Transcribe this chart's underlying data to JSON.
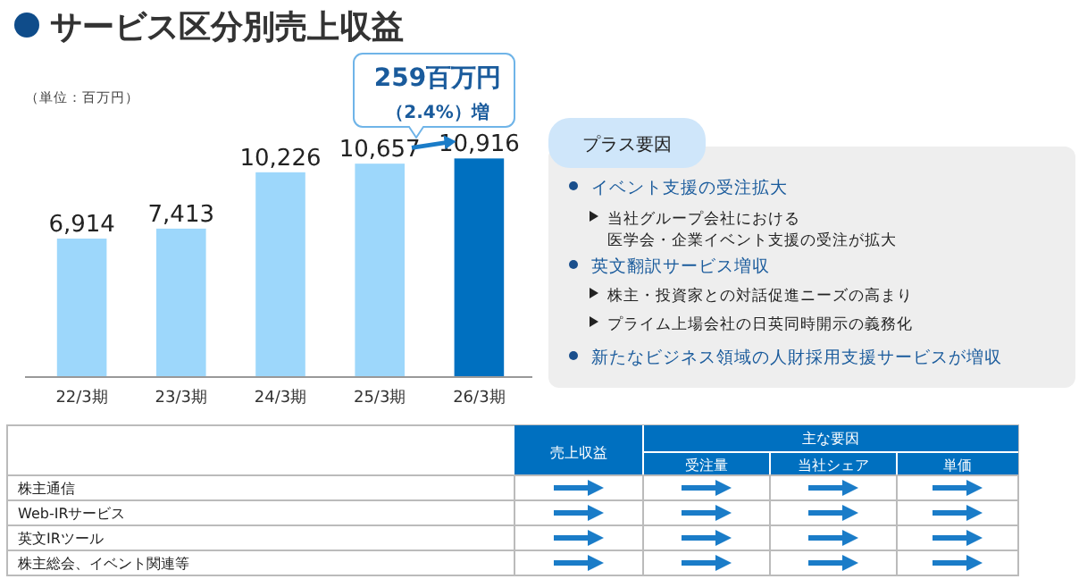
{
  "chart_data": {
    "type": "bar",
    "title": "サービス区分別売上収益",
    "categories": [
      "22/3期",
      "23/3期",
      "24/3期",
      "25/3期",
      "26/3期"
    ],
    "values": [
      6914,
      7413,
      10226,
      10657,
      10916
    ],
    "colors": [
      "#9dd7fb",
      "#9dd7fb",
      "#9dd7fb",
      "#9dd7fb",
      "#0070c0"
    ],
    "value_labels": [
      "6,914",
      "7,413",
      "10,226",
      "10,657",
      "10,916"
    ],
    "annotations": [
      "（単位：百万円）",
      "259百万円",
      "（2.4%）増",
      "プラス要因",
      "イベント支援の受注拡大",
      "当社グループ会社における医学会・企業イベント支援の受注が拡大",
      "英文翻訳サービス増収",
      "株主・投資家との対話促進ニーズの高まり",
      "プライム上場会社の日英同時開示の義務化",
      "新たなビジネス領域の人財採用支援サービスが増収",
      "売上収益",
      "主な要因",
      "受注量",
      "当社シェア",
      "単価",
      "株主通信",
      "Web-IRサービス",
      "英文IRツール",
      "株主総会、イベント関連等"
    ]
  }
}
